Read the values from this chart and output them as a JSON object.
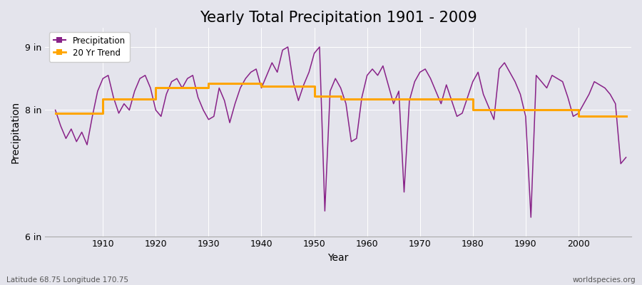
{
  "title": "Yearly Total Precipitation 1901 - 2009",
  "xlabel": "Year",
  "ylabel": "Precipitation",
  "bottom_left_label": "Latitude 68.75 Longitude 170.75",
  "bottom_right_label": "worldspecies.org",
  "legend_labels": [
    "Precipitation",
    "20 Yr Trend"
  ],
  "precip_color": "#882288",
  "trend_color": "#FFA500",
  "bg_color": "#e4e4ec",
  "grid_color": "#ffffff",
  "years": [
    1901,
    1902,
    1903,
    1904,
    1905,
    1906,
    1907,
    1908,
    1909,
    1910,
    1911,
    1912,
    1913,
    1914,
    1915,
    1916,
    1917,
    1918,
    1919,
    1920,
    1921,
    1922,
    1923,
    1924,
    1925,
    1926,
    1927,
    1928,
    1929,
    1930,
    1931,
    1932,
    1933,
    1934,
    1935,
    1936,
    1937,
    1938,
    1939,
    1940,
    1941,
    1942,
    1943,
    1944,
    1945,
    1946,
    1947,
    1948,
    1949,
    1950,
    1951,
    1952,
    1953,
    1954,
    1955,
    1956,
    1957,
    1958,
    1959,
    1960,
    1961,
    1962,
    1963,
    1964,
    1965,
    1966,
    1967,
    1968,
    1969,
    1970,
    1971,
    1972,
    1973,
    1974,
    1975,
    1976,
    1977,
    1978,
    1979,
    1980,
    1981,
    1982,
    1983,
    1984,
    1985,
    1986,
    1987,
    1988,
    1989,
    1990,
    1991,
    1992,
    1993,
    1994,
    1995,
    1996,
    1997,
    1998,
    1999,
    2000,
    2001,
    2002,
    2003,
    2004,
    2005,
    2006,
    2007,
    2008,
    2009
  ],
  "precipitation": [
    8.0,
    7.75,
    7.55,
    7.7,
    7.5,
    7.65,
    7.45,
    7.9,
    8.3,
    8.5,
    8.55,
    8.2,
    7.95,
    8.1,
    8.0,
    8.3,
    8.5,
    8.55,
    8.35,
    8.0,
    7.9,
    8.25,
    8.45,
    8.5,
    8.35,
    8.5,
    8.55,
    8.2,
    8.0,
    7.85,
    7.9,
    8.35,
    8.15,
    7.8,
    8.1,
    8.35,
    8.5,
    8.6,
    8.65,
    8.35,
    8.55,
    8.75,
    8.6,
    8.95,
    9.0,
    8.45,
    8.15,
    8.4,
    8.6,
    8.9,
    9.0,
    6.4,
    8.3,
    8.5,
    8.35,
    8.1,
    7.5,
    7.55,
    8.2,
    8.55,
    8.65,
    8.55,
    8.7,
    8.4,
    8.1,
    8.3,
    6.7,
    8.15,
    8.45,
    8.6,
    8.65,
    8.5,
    8.3,
    8.1,
    8.4,
    8.15,
    7.9,
    7.95,
    8.2,
    8.45,
    8.6,
    8.25,
    8.05,
    7.85,
    8.65,
    8.75,
    8.6,
    8.45,
    8.25,
    7.9,
    6.3,
    8.55,
    8.45,
    8.35,
    8.55,
    8.5,
    8.45,
    8.2,
    7.9,
    7.95,
    8.1,
    8.25,
    8.45,
    8.4,
    8.35,
    8.25,
    8.1,
    7.15,
    7.25
  ],
  "trend_x": [
    1901,
    1910,
    1910,
    1920,
    1920,
    1930,
    1930,
    1940,
    1940,
    1950,
    1950,
    1955,
    1955,
    1970,
    1970,
    1980,
    1980,
    1985,
    1985,
    1990,
    1990,
    2000,
    2000,
    2009
  ],
  "trend_y": [
    7.95,
    7.95,
    8.18,
    8.18,
    8.35,
    8.35,
    8.42,
    8.42,
    8.38,
    8.38,
    8.22,
    8.22,
    8.18,
    8.18,
    8.18,
    8.18,
    8.0,
    8.0,
    8.0,
    8.0,
    8.0,
    8.0,
    7.9,
    7.9
  ],
  "ylim": [
    6.0,
    9.3
  ],
  "yticks": [
    6.0,
    8.0,
    9.0
  ],
  "ytick_labels": [
    "6 in",
    "8 in",
    "9 in"
  ],
  "xlim": [
    1899,
    2010
  ],
  "xticks": [
    1910,
    1920,
    1930,
    1940,
    1950,
    1960,
    1970,
    1980,
    1990,
    2000
  ],
  "title_fontsize": 15,
  "axis_label_fontsize": 10,
  "tick_fontsize": 9,
  "precip_linewidth": 1.1,
  "trend_linewidth": 2.2
}
